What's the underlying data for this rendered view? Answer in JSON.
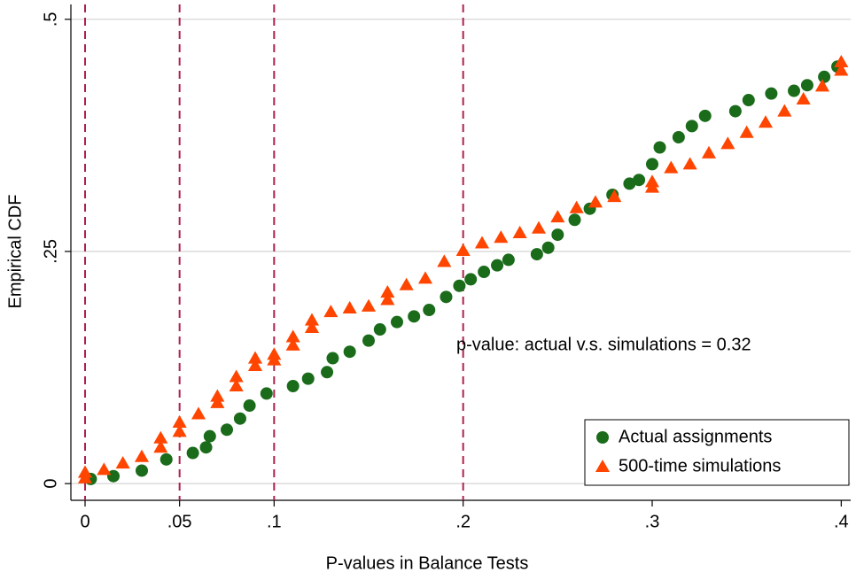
{
  "chart_data": {
    "type": "scatter",
    "x_label": "P-values in Balance Tests",
    "y_label": "Empirical CDF",
    "annotation": "p-value: actual v.s. simulations  = 0.32",
    "xlim": [
      -0.0075,
      0.405
    ],
    "ylim": [
      -0.018,
      0.516
    ],
    "xticks": [
      0,
      {
        "value": 0.05,
        "label": ".05"
      },
      {
        "value": 0.1,
        "label": ".1"
      },
      {
        "value": 0.2,
        "label": ".2"
      },
      {
        "value": 0.3,
        "label": ".3"
      },
      {
        "value": 0.4,
        "label": ".4"
      }
    ],
    "yticks": [
      0,
      {
        "value": 0.25,
        "label": ".25"
      },
      {
        "value": 0.5,
        "label": ".5"
      }
    ],
    "xlines": [
      0,
      0.05,
      0.1,
      0.2
    ],
    "xline_color": "#b0204c",
    "grid": true,
    "legend": "bottom-right",
    "series": [
      {
        "name": "Actual assignments",
        "color": "#1a6b1a",
        "marker": "circle",
        "x": [
          0.003,
          0.015,
          0.03,
          0.043,
          0.057,
          0.064,
          0.066,
          0.075,
          0.082,
          0.087,
          0.096,
          0.11,
          0.118,
          0.128,
          0.131,
          0.14,
          0.15,
          0.156,
          0.165,
          0.174,
          0.182,
          0.191,
          0.198,
          0.204,
          0.211,
          0.218,
          0.224,
          0.239,
          0.245,
          0.25,
          0.259,
          0.267,
          0.279,
          0.288,
          0.293,
          0.3,
          0.304,
          0.314,
          0.321,
          0.328,
          0.344,
          0.351,
          0.363,
          0.375,
          0.382,
          0.391,
          0.398
        ],
        "values": [
          0.005,
          0.008,
          0.014,
          0.026,
          0.033,
          0.039,
          0.051,
          0.058,
          0.07,
          0.084,
          0.097,
          0.105,
          0.113,
          0.12,
          0.135,
          0.142,
          0.154,
          0.166,
          0.174,
          0.18,
          0.187,
          0.201,
          0.213,
          0.22,
          0.228,
          0.235,
          0.241,
          0.247,
          0.254,
          0.268,
          0.284,
          0.296,
          0.311,
          0.323,
          0.327,
          0.344,
          0.362,
          0.373,
          0.385,
          0.396,
          0.401,
          0.413,
          0.42,
          0.423,
          0.429,
          0.438,
          0.449
        ]
      },
      {
        "name": "500-time simulations",
        "color": "#ff4500",
        "marker": "triangle",
        "x": [
          0,
          0,
          0.01,
          0.02,
          0.03,
          0.04,
          0.04,
          0.05,
          0.05,
          0.06,
          0.07,
          0.07,
          0.08,
          0.08,
          0.09,
          0.09,
          0.1,
          0.1,
          0.11,
          0.11,
          0.12,
          0.12,
          0.13,
          0.14,
          0.15,
          0.16,
          0.16,
          0.17,
          0.18,
          0.19,
          0.2,
          0.21,
          0.22,
          0.23,
          0.24,
          0.25,
          0.26,
          0.27,
          0.28,
          0.3,
          0.3,
          0.31,
          0.32,
          0.33,
          0.34,
          0.35,
          0.36,
          0.37,
          0.38,
          0.39,
          0.4,
          0.4
        ],
        "values": [
          0.012,
          0.006,
          0.015,
          0.022,
          0.029,
          0.039,
          0.049,
          0.056,
          0.066,
          0.075,
          0.087,
          0.094,
          0.105,
          0.115,
          0.127,
          0.135,
          0.139,
          0.133,
          0.149,
          0.158,
          0.168,
          0.176,
          0.185,
          0.189,
          0.191,
          0.198,
          0.206,
          0.214,
          0.221,
          0.239,
          0.251,
          0.259,
          0.265,
          0.27,
          0.275,
          0.287,
          0.297,
          0.303,
          0.309,
          0.325,
          0.319,
          0.34,
          0.344,
          0.356,
          0.366,
          0.378,
          0.389,
          0.401,
          0.414,
          0.428,
          0.445,
          0.454
        ]
      }
    ]
  }
}
